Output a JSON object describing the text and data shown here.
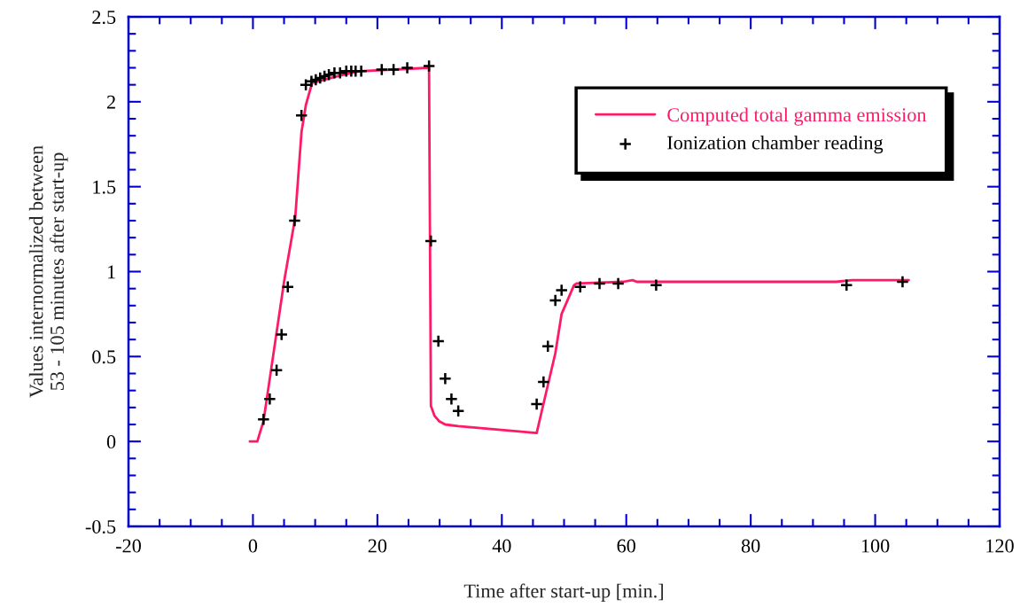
{
  "chart_data": {
    "type": "line",
    "xlabel": "Time after start-up [min.]",
    "ylabel": "Values internormalized between\n53 - 105 minutes after start-up",
    "xlim": [
      -20,
      120
    ],
    "xticks": [
      -20,
      0,
      20,
      40,
      60,
      80,
      100,
      120
    ],
    "ylim": [
      -0.5,
      2.5
    ],
    "yticks": [
      -0.5,
      0,
      0.5,
      1,
      1.5,
      2,
      2.5
    ],
    "grid": false,
    "legend": "top right",
    "series": [
      {
        "name": "Computed total gamma emission",
        "type": "line",
        "color": "#ff1a66",
        "line_style": "solid",
        "marker": "none",
        "x": [
          -0.5,
          0.7,
          1.7,
          5,
          6.8,
          7.8,
          8.5,
          9.5,
          13.5,
          17.1,
          28.3,
          28.6,
          29.2,
          29.9,
          30.9,
          33,
          45.6,
          46.3,
          48.6,
          49.6,
          51.6,
          52,
          59.5,
          61,
          61.7,
          93.7,
          96.3,
          105.4
        ],
        "values": [
          0,
          0,
          0.12,
          0.94,
          1.32,
          1.82,
          1.98,
          2.11,
          2.15,
          2.18,
          2.2,
          0.21,
          0.15,
          0.12,
          0.1,
          0.09,
          0.05,
          0.16,
          0.52,
          0.75,
          0.92,
          0.93,
          0.94,
          0.95,
          0.94,
          0.94,
          0.95,
          0.95
        ]
      },
      {
        "name": "Ionization chamber reading",
        "type": "scatter",
        "color": "#000000",
        "marker": "cross",
        "x": [
          1.7,
          2.7,
          3.8,
          4.6,
          5.6,
          6.7,
          7.8,
          8.5,
          9.4,
          10.1,
          10.8,
          11.5,
          12.2,
          13.1,
          14,
          15,
          15.8,
          16.5,
          17.4,
          20.7,
          22.6,
          24.8,
          28.3,
          28.6,
          29.8,
          30.9,
          31.9,
          33,
          45.6,
          46.7,
          47.4,
          48.6,
          49.6,
          52.6,
          55.7,
          58.7,
          64.8,
          95.4,
          104.4
        ],
        "values": [
          0.13,
          0.25,
          0.42,
          0.63,
          0.91,
          1.3,
          1.92,
          2.1,
          2.12,
          2.13,
          2.14,
          2.15,
          2.16,
          2.17,
          2.17,
          2.18,
          2.18,
          2.18,
          2.18,
          2.19,
          2.19,
          2.2,
          2.21,
          1.18,
          0.59,
          0.37,
          0.25,
          0.18,
          0.22,
          0.35,
          0.56,
          0.83,
          0.89,
          0.91,
          0.93,
          0.93,
          0.92,
          0.92,
          0.94
        ]
      }
    ]
  }
}
